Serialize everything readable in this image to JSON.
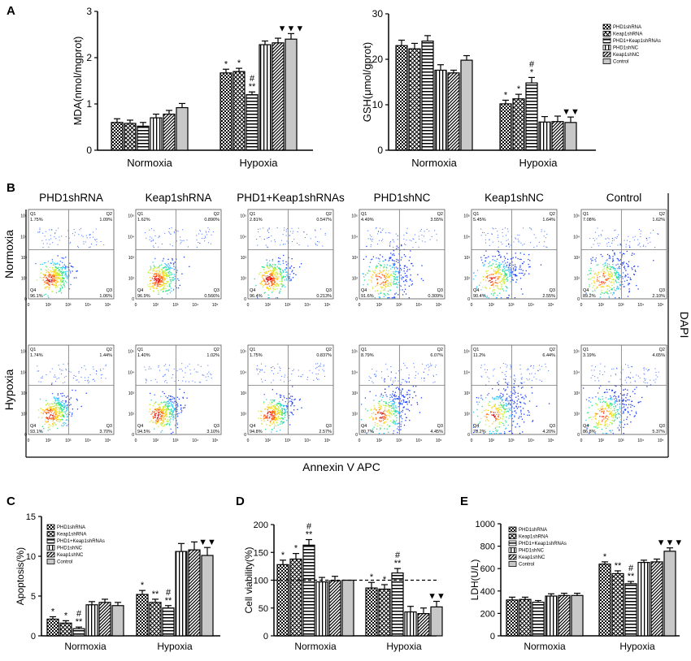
{
  "panel_labels": {
    "A": "A",
    "B": "B",
    "C": "C",
    "D": "D",
    "E": "E"
  },
  "legend": [
    "PHD1shRNA",
    "Keap1shRNA",
    "PHD1+Keap1shRNAs",
    "PHD1shNC",
    "Keap1shNC",
    "Control"
  ],
  "chart_data": [
    {
      "id": "A-left",
      "type": "bar",
      "ylabel": "MDA(nmol/mgprot)",
      "ylim": [
        0,
        3
      ],
      "yticks": [
        0,
        1,
        2,
        3
      ],
      "categories": [
        "Normoxia",
        "Hypoxia"
      ],
      "series": [
        {
          "name": "PHD1shRNA",
          "values": [
            0.6,
            1.67
          ],
          "errors": [
            0.08,
            0.08
          ],
          "annot": [
            "",
            "*"
          ]
        },
        {
          "name": "Keap1shRNA",
          "values": [
            0.58,
            1.7
          ],
          "errors": [
            0.07,
            0.07
          ],
          "annot": [
            "",
            "*"
          ]
        },
        {
          "name": "PHD1+Keap1shRNAs",
          "values": [
            0.52,
            1.2
          ],
          "errors": [
            0.08,
            0.06
          ],
          "annot": [
            "",
            "#\n**"
          ]
        },
        {
          "name": "PHD1shNC",
          "values": [
            0.7,
            2.28
          ],
          "errors": [
            0.08,
            0.08
          ],
          "annot": [
            "",
            ""
          ]
        },
        {
          "name": "Keap1shNC",
          "values": [
            0.78,
            2.32
          ],
          "errors": [
            0.08,
            0.1
          ],
          "annot": [
            "",
            ""
          ]
        },
        {
          "name": "Control",
          "values": [
            0.92,
            2.4
          ],
          "errors": [
            0.09,
            0.12
          ],
          "annot": [
            "",
            "▼▼▼"
          ]
        }
      ]
    },
    {
      "id": "A-right",
      "type": "bar",
      "ylabel": "GSH(μmol/gprot)",
      "ylim": [
        0,
        30
      ],
      "yticks": [
        0,
        10,
        20,
        30
      ],
      "categories": [
        "Normoxia",
        "Hypoxia"
      ],
      "series": [
        {
          "name": "PHD1shRNA",
          "values": [
            23,
            10.2
          ],
          "errors": [
            1.2,
            0.8
          ],
          "annot": [
            "",
            "*"
          ]
        },
        {
          "name": "Keap1shRNA",
          "values": [
            22.3,
            11.3
          ],
          "errors": [
            1.2,
            1.0
          ],
          "annot": [
            "",
            "*"
          ]
        },
        {
          "name": "PHD1+Keap1shRNAs",
          "values": [
            24,
            14.8
          ],
          "errors": [
            1.2,
            1.2
          ],
          "annot": [
            "",
            "#\n*"
          ]
        },
        {
          "name": "PHD1shNC",
          "values": [
            17.6,
            6.2
          ],
          "errors": [
            1.2,
            1.2
          ],
          "annot": [
            "",
            ""
          ]
        },
        {
          "name": "Keap1shNC",
          "values": [
            17,
            6.3
          ],
          "errors": [
            0.6,
            1.2
          ],
          "annot": [
            "",
            ""
          ]
        },
        {
          "name": "Control",
          "values": [
            19.8,
            6.1
          ],
          "errors": [
            1.0,
            1.2
          ],
          "annot": [
            "",
            "▼▼"
          ]
        }
      ]
    },
    {
      "id": "C",
      "type": "bar",
      "ylabel": "Apoptosis(%)",
      "ylim": [
        0,
        15
      ],
      "yticks": [
        0,
        5,
        10,
        15
      ],
      "categories": [
        "Normoxia",
        "Hypoxia"
      ],
      "series": [
        {
          "name": "PHD1shRNA",
          "values": [
            2.1,
            5.2
          ],
          "errors": [
            0.3,
            0.5
          ],
          "annot": [
            "*",
            "*"
          ]
        },
        {
          "name": "Keap1shRNA",
          "values": [
            1.6,
            4.2
          ],
          "errors": [
            0.3,
            0.4
          ],
          "annot": [
            "*",
            "**"
          ]
        },
        {
          "name": "PHD1+Keap1shRNAs",
          "values": [
            0.9,
            3.5
          ],
          "errors": [
            0.2,
            0.3
          ],
          "annot": [
            "#\n**",
            "#\n**"
          ]
        },
        {
          "name": "PHD1shNC",
          "values": [
            3.9,
            10.6
          ],
          "errors": [
            0.4,
            1.0
          ],
          "annot": [
            "",
            ""
          ]
        },
        {
          "name": "Keap1shNC",
          "values": [
            4.2,
            10.8
          ],
          "errors": [
            0.4,
            1.0
          ],
          "annot": [
            "",
            ""
          ]
        },
        {
          "name": "Control",
          "values": [
            3.8,
            10.1
          ],
          "errors": [
            0.4,
            1.0
          ],
          "annot": [
            "",
            "▼▼"
          ]
        }
      ]
    },
    {
      "id": "D",
      "type": "bar",
      "ylabel": "Cell viability(%)",
      "ylim": [
        0,
        200
      ],
      "yticks": [
        0,
        50,
        100,
        150,
        200
      ],
      "categories": [
        "Normoxia",
        "Hypoxia"
      ],
      "refline": 100,
      "series": [
        {
          "name": "PHD1shRNA",
          "values": [
            128,
            86
          ],
          "errors": [
            8,
            10
          ],
          "annot": [
            "*",
            "*"
          ]
        },
        {
          "name": "Keap1shRNA",
          "values": [
            138,
            84
          ],
          "errors": [
            10,
            8
          ],
          "annot": [
            "*",
            "*"
          ]
        },
        {
          "name": "PHD1+Keap1shRNAs",
          "values": [
            163,
            113
          ],
          "errors": [
            10,
            8
          ],
          "annot": [
            "#\n**",
            "#\n**"
          ]
        },
        {
          "name": "PHD1shNC",
          "values": [
            97,
            43
          ],
          "errors": [
            8,
            10
          ],
          "annot": [
            "",
            ""
          ]
        },
        {
          "name": "Keap1shNC",
          "values": [
            99,
            40
          ],
          "errors": [
            8,
            10
          ],
          "annot": [
            "",
            ""
          ]
        },
        {
          "name": "Control",
          "values": [
            100,
            52
          ],
          "errors": [
            0,
            10
          ],
          "annot": [
            "",
            "▼▼"
          ]
        }
      ]
    },
    {
      "id": "E",
      "type": "bar",
      "ylabel": "LDH(U/L)",
      "ylim": [
        0,
        1000
      ],
      "yticks": [
        0,
        200,
        400,
        600,
        800,
        1000
      ],
      "categories": [
        "Normoxia",
        "Hypoxia"
      ],
      "series": [
        {
          "name": "PHD1shRNA",
          "values": [
            320,
            640
          ],
          "errors": [
            25,
            20
          ],
          "annot": [
            "",
            "*"
          ]
        },
        {
          "name": "Keap1shRNA",
          "values": [
            325,
            555
          ],
          "errors": [
            20,
            25
          ],
          "annot": [
            "",
            "**"
          ]
        },
        {
          "name": "PHD1+Keap1shRNAs",
          "values": [
            300,
            465
          ],
          "errors": [
            15,
            20
          ],
          "annot": [
            "",
            "#\n**"
          ]
        },
        {
          "name": "PHD1shNC",
          "values": [
            355,
            655
          ],
          "errors": [
            20,
            20
          ],
          "annot": [
            "",
            ""
          ]
        },
        {
          "name": "Keap1shNC",
          "values": [
            360,
            660
          ],
          "errors": [
            20,
            25
          ],
          "annot": [
            "",
            ""
          ]
        },
        {
          "name": "Control",
          "values": [
            360,
            755
          ],
          "errors": [
            20,
            30
          ],
          "annot": [
            "",
            "▼▼▼"
          ]
        }
      ]
    }
  ],
  "flow": {
    "columns": [
      "PHD1shRNA",
      "Keap1shRNA",
      "PHD1+Keap1shRNAs",
      "PHD1shNC",
      "Keap1shNC",
      "Control"
    ],
    "rows": [
      "Normoxia",
      "Hypoxia"
    ],
    "xlabel": "Annexin V APC",
    "ylabel": "DAPI",
    "quadrant_names": [
      "Q1",
      "Q2",
      "Q3",
      "Q4"
    ],
    "quadrants": [
      [
        {
          "q1": "1.75%",
          "q2": "1.09%",
          "q3": "1.06%",
          "q4": "96.1%"
        },
        {
          "q1": "1.62%",
          "q2": "0.890%",
          "q3": "0.566%",
          "q4": "96.9%"
        },
        {
          "q1": "2.81%",
          "q2": "0.547%",
          "q3": "0.213%",
          "q4": "96.4%"
        },
        {
          "q1": "4.49%",
          "q2": "3.55%",
          "q3": "0.309%",
          "q4": "91.6%"
        },
        {
          "q1": "5.45%",
          "q2": "1.64%",
          "q3": "2.55%",
          "q4": "90.4%"
        },
        {
          "q1": "7.08%",
          "q2": "1.62%",
          "q3": "2.10%",
          "q4": "89.2%"
        }
      ],
      [
        {
          "q1": "1.74%",
          "q2": "1.44%",
          "q3": "3.70%",
          "q4": "93.1%"
        },
        {
          "q1": "1.40%",
          "q2": "1.02%",
          "q3": "3.10%",
          "q4": "94.5%"
        },
        {
          "q1": "1.75%",
          "q2": "0.837%",
          "q3": "2.57%",
          "q4": "94.8%"
        },
        {
          "q1": "8.79%",
          "q2": "6.07%",
          "q3": "4.45%",
          "q4": "80.7%"
        },
        {
          "q1": "11.2%",
          "q2": "6.44%",
          "q3": "4.20%",
          "q4": "78.2%"
        },
        {
          "q1": "3.19%",
          "q2": "4.65%",
          "q3": "5.37%",
          "q4": "86.8%"
        }
      ]
    ],
    "axis_ticks": [
      "0",
      "10²",
      "10³",
      "10⁴",
      "10⁵"
    ]
  }
}
